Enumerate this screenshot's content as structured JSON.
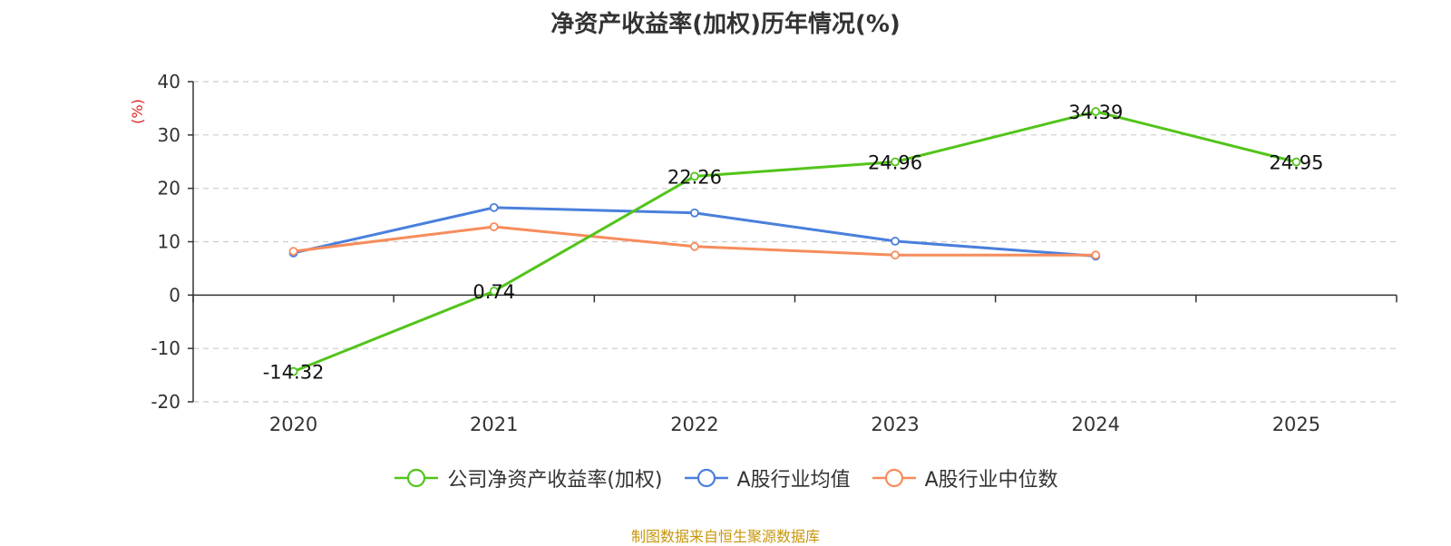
{
  "chart_data": {
    "type": "line",
    "title": "净资产收益率(加权)历年情况(%)",
    "ylabel": "(%)",
    "xlabel": "",
    "ylim": [
      -20,
      40
    ],
    "yticks": [
      40,
      30,
      20,
      10,
      0,
      -10,
      -20
    ],
    "categories": [
      "2020",
      "2021",
      "2022",
      "2023",
      "2024",
      "2025"
    ],
    "grid": true,
    "legend_position": "bottom",
    "series": [
      {
        "name": "公司净资产收益率(加权)",
        "color": "#52c41a",
        "values": [
          -14.32,
          0.74,
          22.26,
          24.96,
          34.39,
          24.95
        ],
        "labels": [
          "-14.32",
          "0.74",
          "22.26",
          "24.96",
          "34.39",
          "24.95"
        ]
      },
      {
        "name": "A股行业均值",
        "color": "#4a7fdc",
        "values": [
          7.9,
          16.4,
          15.4,
          10.1,
          7.3,
          null
        ]
      },
      {
        "name": "A股行业中位数",
        "color": "#f78c5c",
        "values": [
          8.2,
          12.8,
          9.1,
          7.5,
          7.5,
          null
        ]
      }
    ]
  },
  "source_note": "制图数据来自恒生聚源数据库"
}
